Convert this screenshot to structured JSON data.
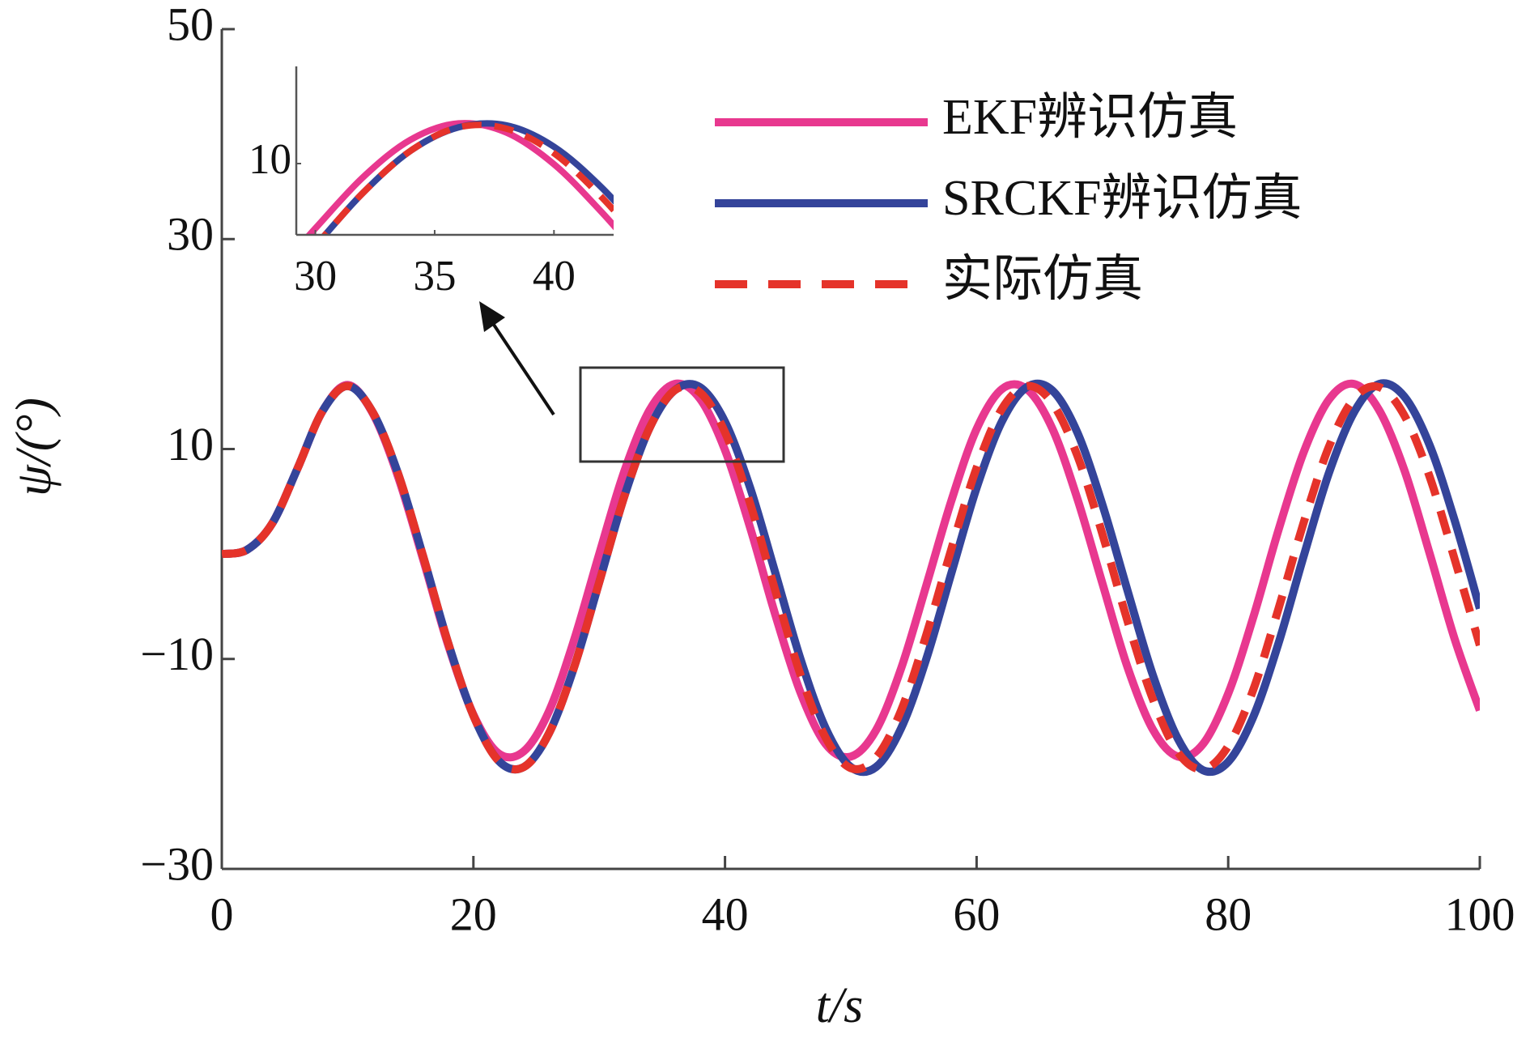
{
  "chart_data": {
    "type": "line",
    "xlabel": "t/s",
    "ylabel": "ψ/(°)",
    "x": [
      0,
      2,
      4,
      6,
      8,
      10,
      12,
      14,
      16,
      18,
      20,
      22,
      24,
      26,
      28,
      30,
      32,
      34,
      36,
      38,
      40,
      42,
      44,
      46,
      48,
      50,
      52,
      54,
      56,
      58,
      60,
      62,
      64,
      66,
      68,
      70,
      72,
      74,
      76,
      78,
      80,
      82,
      84,
      86,
      88,
      90,
      92,
      94,
      96,
      98,
      100
    ],
    "series": [
      {
        "name": "EKF辨识仿真",
        "color": "#e8388f",
        "linestyle": "solid",
        "values": [
          0,
          0.4,
          2.9,
          8.1,
          13.6,
          16.1,
          13.4,
          7.4,
          -0.5,
          -8.7,
          -15.3,
          -19.0,
          -18.8,
          -15.0,
          -8.2,
          0.0,
          7.9,
          13.7,
          16.2,
          14.8,
          9.9,
          2.5,
          -5.8,
          -13.2,
          -18.1,
          -19.3,
          -16.8,
          -10.9,
          -3.0,
          5.1,
          11.9,
          15.7,
          15.7,
          12.0,
          5.3,
          -2.8,
          -10.8,
          -16.7,
          -19.3,
          -18.1,
          -13.3,
          -6.0,
          2.3,
          9.7,
          14.7,
          16.2,
          13.7,
          8.0,
          0.1,
          -8.1,
          -14.9
        ]
      },
      {
        "name": "SRCKF辨识仿真",
        "color": "#34449a",
        "linestyle": "solid",
        "values": [
          0,
          0.4,
          2.9,
          8.1,
          13.6,
          16.0,
          13.5,
          7.7,
          -0.2,
          -8.5,
          -15.4,
          -19.7,
          -20.3,
          -17.1,
          -10.8,
          -2.7,
          5.5,
          12.0,
          15.6,
          15.9,
          12.6,
          6.3,
          -1.8,
          -10.0,
          -16.6,
          -20.3,
          -20.3,
          -16.6,
          -10.0,
          -1.8,
          6.3,
          12.6,
          15.9,
          15.6,
          11.6,
          4.7,
          -3.5,
          -11.5,
          -17.6,
          -20.6,
          -19.8,
          -15.5,
          -8.5,
          -0.2,
          7.7,
          13.5,
          16.2,
          15.0,
          10.4,
          3.2,
          -5.2
        ]
      },
      {
        "name": "实际仿真",
        "color": "#e5332a",
        "linestyle": "dashed",
        "values": [
          0,
          0.4,
          2.9,
          8.1,
          13.6,
          16.0,
          13.5,
          7.7,
          -0.2,
          -8.5,
          -15.4,
          -19.7,
          -20.3,
          -17.1,
          -10.8,
          -2.7,
          5.5,
          12.0,
          15.6,
          15.4,
          11.6,
          4.8,
          -3.5,
          -11.5,
          -17.5,
          -20.4,
          -19.4,
          -14.9,
          -7.7,
          0.5,
          8.2,
          13.8,
          16.0,
          14.4,
          9.4,
          1.9,
          -6.4,
          -13.8,
          -18.9,
          -20.5,
          -18.3,
          -12.9,
          -5.2,
          3.0,
          10.2,
          14.8,
          15.9,
          13.2,
          7.4,
          -0.5,
          -8.7
        ]
      }
    ],
    "xlim": [
      0,
      100
    ],
    "ylim": [
      -30,
      50
    ],
    "xticks": [
      0,
      20,
      40,
      60,
      80,
      100
    ],
    "yticks": [
      50,
      30,
      10,
      {
        "value": -10,
        "label": "−10"
      },
      {
        "value": -30,
        "label": "−30"
      }
    ],
    "legend": "upper right",
    "inset": {
      "xlim": [
        29.2,
        42.5
      ],
      "ylim": [
        -1,
        25
      ],
      "xticks": [
        30,
        35,
        40
      ],
      "yticks": [
        10
      ]
    }
  }
}
